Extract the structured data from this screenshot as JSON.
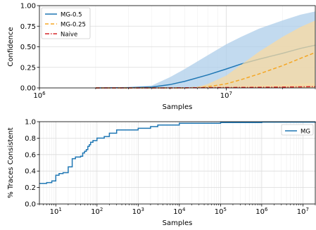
{
  "chart_data": [
    {
      "type": "area",
      "xlabel": "Samples",
      "ylabel": "Confidence",
      "xscale": "log",
      "xlim": [
        1000000,
        30000000
      ],
      "ylim": [
        0,
        1
      ],
      "x_ticks": [
        {
          "value": 1000000,
          "label": "10^6"
        },
        {
          "value": 10000000,
          "label": "10^7"
        }
      ],
      "y_ticks": [
        "0.00",
        "0.25",
        "0.50",
        "0.75",
        "1.00"
      ],
      "grid": true,
      "legend_position": "top-left",
      "series": [
        {
          "name": "MG-0.5",
          "color": "#1f77b4",
          "style": "solid",
          "band_color": "#aecde9",
          "x": [
            2000000,
            3000000,
            4000000,
            5000000,
            6000000,
            8000000,
            10000000,
            12000000,
            15000000,
            20000000,
            25000000,
            30000000
          ],
          "mean": [
            0.0,
            0.003,
            0.01,
            0.04,
            0.08,
            0.16,
            0.23,
            0.29,
            0.35,
            0.42,
            0.48,
            0.52
          ],
          "lower": [
            0.0,
            0.0,
            0.0,
            0.0,
            0.0,
            0.0,
            0.0,
            0.0,
            0.0,
            0.0,
            0.0,
            0.0
          ],
          "upper": [
            0.0,
            0.01,
            0.03,
            0.13,
            0.23,
            0.4,
            0.53,
            0.62,
            0.72,
            0.82,
            0.89,
            0.93
          ]
        },
        {
          "name": "MG-0.25",
          "color": "#f5a623",
          "style": "dashed",
          "band_color": "#f9d9a0",
          "x": [
            2000000,
            4000000,
            6000000,
            7000000,
            8000000,
            10000000,
            12000000,
            15000000,
            20000000,
            25000000,
            30000000
          ],
          "mean": [
            0.0,
            0.0,
            0.0,
            0.005,
            0.015,
            0.05,
            0.1,
            0.17,
            0.27,
            0.36,
            0.43
          ],
          "lower": [
            0.0,
            0.0,
            0.0,
            0.0,
            0.0,
            0.0,
            0.0,
            0.0,
            0.0,
            0.0,
            0.0
          ],
          "upper": [
            0.0,
            0.0,
            0.0,
            0.01,
            0.05,
            0.15,
            0.28,
            0.44,
            0.62,
            0.74,
            0.82
          ]
        },
        {
          "name": "Naive",
          "color": "#d62728",
          "style": "dashdot",
          "band_color": "#f6ddaa",
          "x": [
            2000000,
            5000000,
            10000000,
            15000000,
            20000000,
            30000000
          ],
          "mean": [
            0.0,
            0.0,
            0.005,
            0.008,
            0.01,
            0.015
          ],
          "lower": [
            0.0,
            0.0,
            0.0,
            0.0,
            0.0,
            0.0
          ],
          "upper": [
            0.0,
            0.0,
            0.02,
            0.03,
            0.04,
            0.06
          ]
        }
      ]
    },
    {
      "type": "line",
      "xlabel": "Samples",
      "ylabel": "% Traces Consistent",
      "xscale": "log",
      "xlim": [
        4,
        20000000
      ],
      "ylim": [
        0,
        1
      ],
      "x_ticks": [
        {
          "value": 10,
          "label": "10^1"
        },
        {
          "value": 100,
          "label": "10^2"
        },
        {
          "value": 1000,
          "label": "10^3"
        },
        {
          "value": 10000,
          "label": "10^4"
        },
        {
          "value": 100000,
          "label": "10^5"
        },
        {
          "value": 1000000,
          "label": "10^6"
        },
        {
          "value": 10000000,
          "label": "10^7"
        }
      ],
      "y_ticks": [
        "0.0",
        "0.2",
        "0.4",
        "0.6",
        "0.8",
        "1.0"
      ],
      "grid": true,
      "legend_position": "top-right",
      "series": [
        {
          "name": "MG",
          "color": "#1f77b4",
          "style": "steps",
          "x": [
            4,
            6,
            8,
            10,
            10,
            12,
            15,
            20,
            20,
            25,
            25,
            30,
            40,
            45,
            50,
            55,
            60,
            65,
            70,
            80,
            100,
            150,
            200,
            300,
            1000,
            2000,
            3000,
            10000,
            100000,
            1000000,
            20000000
          ],
          "y": [
            0.25,
            0.26,
            0.28,
            0.3,
            0.35,
            0.37,
            0.38,
            0.39,
            0.45,
            0.46,
            0.55,
            0.57,
            0.58,
            0.62,
            0.64,
            0.66,
            0.7,
            0.72,
            0.75,
            0.77,
            0.8,
            0.82,
            0.86,
            0.9,
            0.92,
            0.94,
            0.96,
            0.98,
            0.99,
            0.995,
            1.0
          ]
        }
      ]
    }
  ]
}
